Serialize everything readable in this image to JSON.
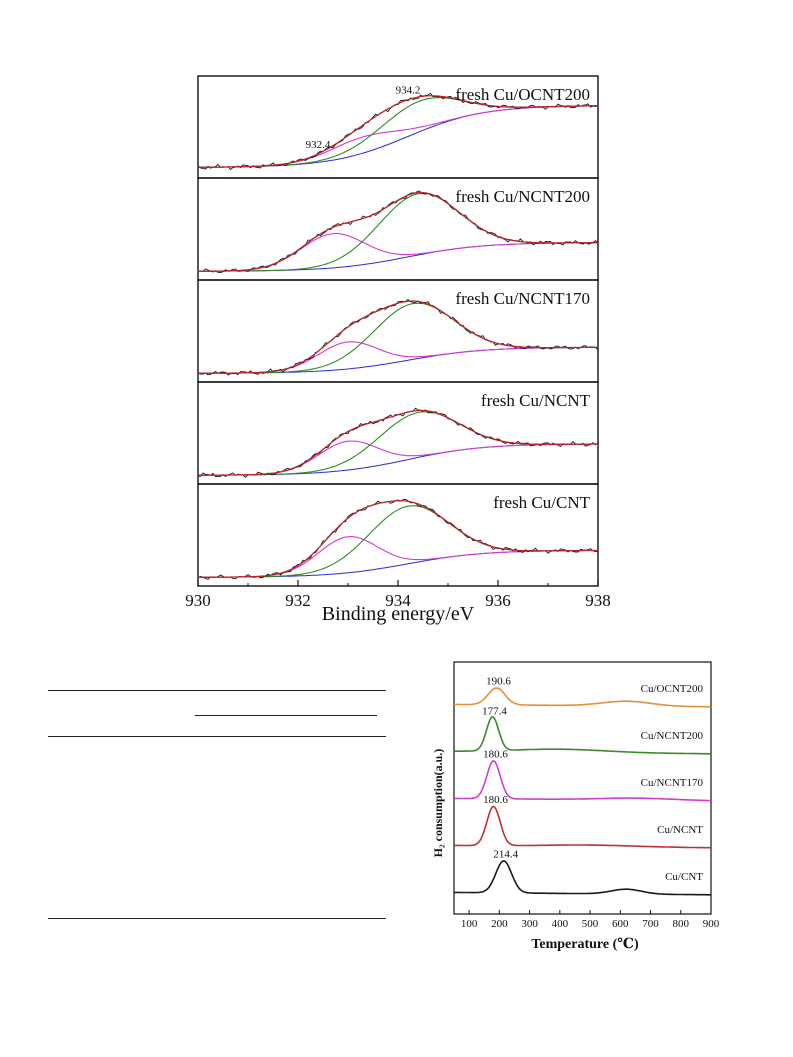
{
  "chart_data": [
    {
      "type": "line",
      "xlabel": "Binding energy/eV",
      "ylabel": "",
      "xlim": [
        930,
        938
      ],
      "xticks": [
        930,
        932,
        934,
        936,
        938
      ],
      "panels": [
        {
          "name": "fresh Cu/OCNT200",
          "annotations": [
            {
              "text": "932.4",
              "x": 932.4
            },
            {
              "text": "934.2",
              "x": 934.2
            }
          ],
          "baseline": [
            0.05,
            0.74
          ],
          "peaks": [
            {
              "center": 933.3,
              "amp": 0.18,
              "sigma": 0.7
            },
            {
              "center": 934.4,
              "amp": 0.34,
              "sigma": 0.8
            }
          ]
        },
        {
          "name": "fresh Cu/NCNT200",
          "annotations": [],
          "baseline": [
            0.03,
            0.35
          ],
          "peaks": [
            {
              "center": 932.7,
              "amp": 0.38,
              "sigma": 0.65
            },
            {
              "center": 934.4,
              "amp": 0.68,
              "sigma": 0.8
            }
          ]
        },
        {
          "name": "fresh Cu/NCNT170",
          "annotations": [],
          "baseline": [
            0.03,
            0.32
          ],
          "peaks": [
            {
              "center": 933.0,
              "amp": 0.3,
              "sigma": 0.6
            },
            {
              "center": 934.3,
              "amp": 0.62,
              "sigma": 0.8
            }
          ]
        },
        {
          "name": "fresh Cu/NCNT",
          "annotations": [],
          "baseline": [
            0.03,
            0.38
          ],
          "peaks": [
            {
              "center": 933.0,
              "amp": 0.32,
              "sigma": 0.6
            },
            {
              "center": 934.4,
              "amp": 0.5,
              "sigma": 0.8
            }
          ]
        },
        {
          "name": "fresh Cu/CNT",
          "annotations": [],
          "baseline": [
            0.03,
            0.33
          ],
          "peaks": [
            {
              "center": 933.0,
              "amp": 0.4,
              "sigma": 0.6
            },
            {
              "center": 934.2,
              "amp": 0.64,
              "sigma": 0.8
            }
          ]
        }
      ],
      "colors": {
        "data": "#1a1a1a",
        "envelope": "#c0202a",
        "peak1": "#d23ad2",
        "peak2": "#2e8b22",
        "background": "#2a2ad8"
      }
    },
    {
      "type": "line",
      "xlabel": "Temperature (℃)",
      "ylabel": "H₂ consumption(a.u.)",
      "xlim": [
        50,
        900
      ],
      "xticks": [
        100,
        200,
        300,
        400,
        500,
        600,
        700,
        800,
        900
      ],
      "series": [
        {
          "name": "Cu/OCNT200",
          "color": "#e0913c",
          "peak_label": "190.6",
          "peak_x": 190.6,
          "peak_h": 0.42,
          "peak_w": 28,
          "offset": 4,
          "hump": {
            "x": 620,
            "h": 0.12,
            "w": 80
          }
        },
        {
          "name": "Cu/NCNT200",
          "color": "#3a8a2a",
          "peak_label": "177.4",
          "peak_x": 177.4,
          "peak_h": 0.85,
          "peak_w": 20,
          "offset": 3,
          "hump": {
            "x": 400,
            "h": 0.08,
            "w": 150
          }
        },
        {
          "name": "Cu/NCNT170",
          "color": "#d43ad4",
          "peak_label": "180.6",
          "peak_x": 180.6,
          "peak_h": 0.95,
          "peak_w": 22,
          "offset": 2,
          "hump": {
            "x": 650,
            "h": 0.05,
            "w": 120
          }
        },
        {
          "name": "Cu/NCNT",
          "color": "#c03030",
          "peak_label": "180.6",
          "peak_x": 180.6,
          "peak_h": 0.98,
          "peak_w": 22,
          "offset": 1,
          "hump": {
            "x": 500,
            "h": 0.04,
            "w": 150
          }
        },
        {
          "name": "Cu/CNT",
          "color": "#1a1a1a",
          "peak_label": "214.4",
          "peak_x": 214.4,
          "peak_h": 0.8,
          "peak_w": 26,
          "offset": 0,
          "hump": {
            "x": 620,
            "h": 0.12,
            "w": 50
          }
        }
      ]
    }
  ]
}
